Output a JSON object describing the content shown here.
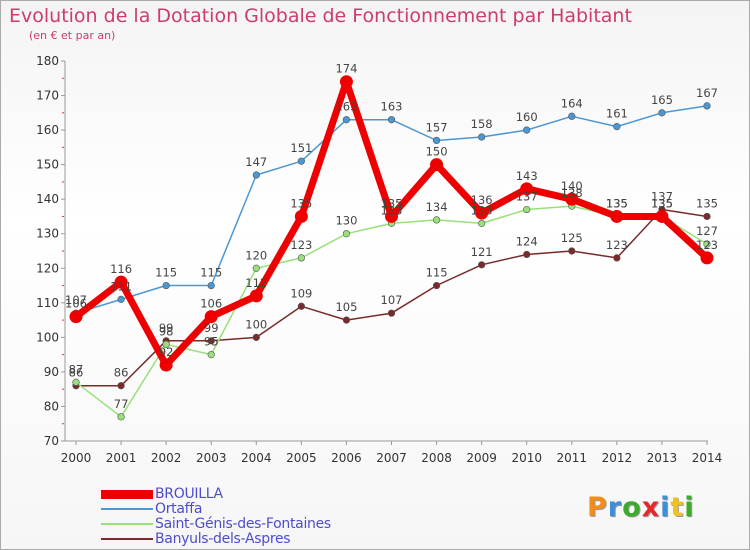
{
  "header": {
    "title": "Evolution de la Dotation Globale de Fonctionnement par Habitant",
    "subtitle": "(en € et par an)"
  },
  "logo": {
    "text": "Proxiti",
    "colors": [
      "#f28c1a",
      "#3d8fd6",
      "#3daa2e",
      "#e8262c",
      "#3d8fd6",
      "#f2c21a",
      "#3daa2e"
    ]
  },
  "chart_data": {
    "type": "line",
    "title": "Evolution de la Dotation Globale de Fonctionnement par Habitant",
    "subtitle": "(en € et par an)",
    "xlabel": "",
    "ylabel": "",
    "x": [
      "2000",
      "2001",
      "2002",
      "2003",
      "2004",
      "2005",
      "2006",
      "2007",
      "2008",
      "2009",
      "2010",
      "2011",
      "2012",
      "2013",
      "2014"
    ],
    "ylim": [
      70,
      180
    ],
    "yticks": [
      70,
      80,
      90,
      100,
      110,
      120,
      130,
      140,
      150,
      160,
      170,
      180
    ],
    "grid": false,
    "legend_position": "bottom-left",
    "series": [
      {
        "name": "BROUILLA",
        "color": "#ee0000",
        "values": [
          106,
          116,
          92,
          106,
          112,
          135,
          174,
          135,
          150,
          136,
          143,
          140,
          135,
          135,
          123
        ]
      },
      {
        "name": "Ortaffa",
        "color": "#4b97d4",
        "values": [
          107,
          111,
          115,
          115,
          147,
          151,
          163,
          163,
          157,
          158,
          160,
          164,
          161,
          165,
          167
        ]
      },
      {
        "name": "Saint-Génis-des-Fontaines",
        "color": "#99e07a",
        "values": [
          87,
          77,
          98,
          95,
          120,
          123,
          130,
          133,
          134,
          133,
          137,
          138,
          135,
          135,
          127
        ]
      },
      {
        "name": "Banyuls-dels-Aspres",
        "color": "#7a2a2a",
        "values": [
          86,
          86,
          99,
          99,
          100,
          109,
          105,
          107,
          115,
          121,
          124,
          125,
          123,
          137,
          135
        ]
      }
    ]
  }
}
